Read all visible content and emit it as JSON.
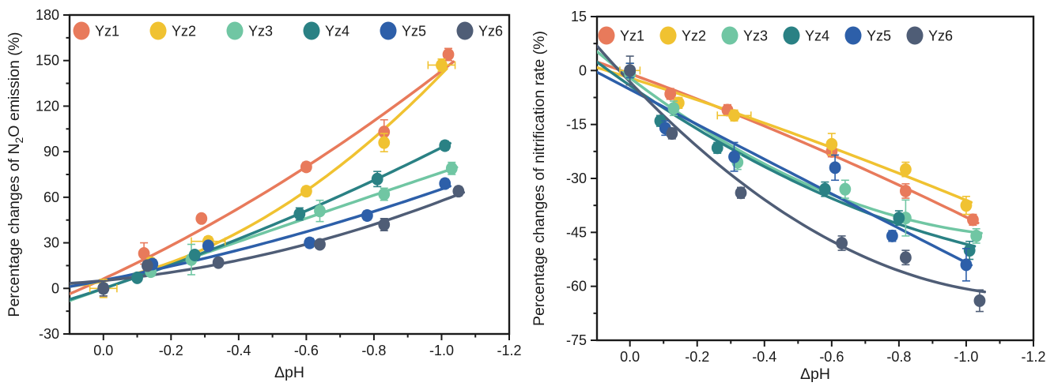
{
  "figure": {
    "background": "#ffffff",
    "frame_color": "#1a1a1a",
    "text_color": "#1a1a1a"
  },
  "chart_data": [
    {
      "type": "scatter",
      "title": "",
      "xlabel": "ΔpH",
      "ylabel_parts": [
        {
          "t": "Percentage changes of N"
        },
        {
          "t": "2",
          "sub": true
        },
        {
          "t": "O emission (%)"
        }
      ],
      "xlim": [
        0.1,
        -1.2
      ],
      "ylim": [
        -30,
        180
      ],
      "xtick_vals": [
        0.0,
        -0.2,
        -0.4,
        -0.6,
        -0.8,
        -1.0,
        -1.2
      ],
      "xtick_labels": [
        "0.0",
        "-0.2",
        "-0.4",
        "-0.6",
        "-0.8",
        "-1.0",
        "-1.2"
      ],
      "ytick_vals": [
        -30,
        0,
        30,
        60,
        90,
        120,
        150,
        180
      ],
      "ytick_labels": [
        "-30",
        "0",
        "30",
        "60",
        "90",
        "120",
        "150",
        "180"
      ],
      "x_minor_vals": [
        -0.1,
        -0.3,
        -0.5,
        -0.7,
        -0.9,
        -1.1
      ],
      "y_minor_vals": [
        -15,
        15,
        45,
        75,
        105,
        135,
        165
      ],
      "grid": "off",
      "legend_position": "top-inside",
      "fit": "quadratic",
      "series": [
        {
          "name": "Yz1",
          "color": "#E87A5B",
          "points": [
            [
              0,
              0,
              5
            ],
            [
              -0.12,
              23,
              7
            ],
            [
              -0.29,
              46,
              2
            ],
            [
              -0.6,
              80,
              3
            ],
            [
              -0.83,
              103,
              8
            ],
            [
              -1.02,
              154,
              4
            ]
          ]
        },
        {
          "name": "Yz2",
          "color": "#F0C231",
          "points": [
            [
              0,
              0,
              6,
              0.04
            ],
            [
              -0.14,
              17,
              3
            ],
            [
              -0.31,
              31,
              3,
              0.05
            ],
            [
              -0.6,
              64,
              3
            ],
            [
              -0.83,
              96,
              6
            ],
            [
              -1.0,
              147,
              4,
              0.04
            ]
          ]
        },
        {
          "name": "Yz3",
          "color": "#70C6A3",
          "points": [
            [
              0,
              0,
              3
            ],
            [
              -0.14,
              11,
              3
            ],
            [
              -0.26,
              19,
              10
            ],
            [
              -0.64,
              51,
              7
            ],
            [
              -0.83,
              62,
              4
            ],
            [
              -1.03,
              79,
              4
            ]
          ]
        },
        {
          "name": "Yz4",
          "color": "#2A8184",
          "points": [
            [
              0,
              0,
              3
            ],
            [
              -0.1,
              7,
              2
            ],
            [
              -0.27,
              22,
              2
            ],
            [
              -0.58,
              49,
              4
            ],
            [
              -0.81,
              72,
              5
            ],
            [
              -1.01,
              94,
              3
            ]
          ]
        },
        {
          "name": "Yz5",
          "color": "#2D5FA9",
          "points": [
            [
              0,
              0,
              3
            ],
            [
              -0.145,
              16,
              3
            ],
            [
              -0.31,
              28,
              2
            ],
            [
              -0.61,
              30,
              3
            ],
            [
              -0.78,
              48,
              3
            ],
            [
              -1.01,
              69,
              3
            ]
          ]
        },
        {
          "name": "Yz6",
          "color": "#4F5D76",
          "points": [
            [
              0,
              0,
              5
            ],
            [
              -0.13,
              15,
              3
            ],
            [
              -0.34,
              17,
              2
            ],
            [
              -0.64,
              29,
              2
            ],
            [
              -0.83,
              42,
              4
            ],
            [
              -1.05,
              64,
              3
            ]
          ]
        }
      ]
    },
    {
      "type": "scatter",
      "title": "",
      "xlabel": "ΔpH",
      "ylabel_parts": [
        {
          "t": "Percentage changes of nitrification rate (%)"
        }
      ],
      "xlim": [
        0.098,
        -1.2
      ],
      "ylim": [
        -75,
        15
      ],
      "xtick_vals": [
        0.0,
        -0.2,
        -0.4,
        -0.6,
        -0.8,
        -1.0,
        -1.2
      ],
      "xtick_labels": [
        "0.0",
        "-0.2",
        "-0.4",
        "-0.6",
        "-0.8",
        "-1.0",
        "-1.2"
      ],
      "ytick_vals": [
        -75,
        -60,
        -45,
        -30,
        -15,
        0,
        15
      ],
      "ytick_labels": [
        "-75",
        "-60",
        "-45",
        "-30",
        "-15",
        "0",
        "15"
      ],
      "x_minor_vals": [
        -0.1,
        -0.3,
        -0.5,
        -0.7,
        -0.9,
        -1.1
      ],
      "y_minor_vals": [
        -67.5,
        -52.5,
        -37.5,
        -22.5,
        -7.5,
        7.5
      ],
      "grid": "off",
      "legend_position": "top-inside",
      "fit": "quadratic",
      "series": [
        {
          "name": "Yz1",
          "color": "#E87A5B",
          "points": [
            [
              0,
              0,
              2
            ],
            [
              -0.12,
              -6.5,
              1.5
            ],
            [
              -0.29,
              -11,
              1.5
            ],
            [
              -0.6,
              -22.5,
              1.5
            ],
            [
              -0.82,
              -33.5,
              2
            ],
            [
              -1.02,
              -41.5,
              1.5
            ]
          ]
        },
        {
          "name": "Yz2",
          "color": "#F0C231",
          "points": [
            [
              0,
              0,
              2,
              0.03
            ],
            [
              -0.145,
              -9,
              1.5
            ],
            [
              -0.31,
              -12.5,
              1.5,
              0.05
            ],
            [
              -0.6,
              -20.5,
              3
            ],
            [
              -0.82,
              -27.5,
              2
            ],
            [
              -1.0,
              -37.5,
              2.5
            ]
          ]
        },
        {
          "name": "Yz3",
          "color": "#70C6A3",
          "points": [
            [
              0,
              -1,
              3
            ],
            [
              -0.13,
              -10.5,
              2
            ],
            [
              -0.32,
              -25.5,
              2
            ],
            [
              -0.64,
              -33,
              2.5
            ],
            [
              -0.82,
              -41,
              5
            ],
            [
              -1.03,
              -46,
              2
            ]
          ]
        },
        {
          "name": "Yz4",
          "color": "#2A8184",
          "points": [
            [
              0,
              0,
              2
            ],
            [
              -0.09,
              -14,
              1.5
            ],
            [
              -0.26,
              -21.5,
              1.5
            ],
            [
              -0.58,
              -33,
              2
            ],
            [
              -0.8,
              -41,
              2
            ],
            [
              -1.01,
              -50,
              2.5
            ]
          ]
        },
        {
          "name": "Yz5",
          "color": "#2D5FA9",
          "points": [
            [
              0,
              0,
              2
            ],
            [
              -0.105,
              -16,
              2
            ],
            [
              -0.31,
              -24,
              4
            ],
            [
              -0.61,
              -27,
              3.5
            ],
            [
              -0.78,
              -46,
              1.5
            ],
            [
              -1.0,
              -54,
              4.5
            ]
          ]
        },
        {
          "name": "Yz6",
          "color": "#4F5D76",
          "points": [
            [
              0,
              0,
              4
            ],
            [
              -0.125,
              -17.5,
              1.5
            ],
            [
              -0.33,
              -34,
              1.5
            ],
            [
              -0.63,
              -48,
              2
            ],
            [
              -0.82,
              -52,
              2
            ],
            [
              -1.04,
              -64,
              3
            ]
          ]
        }
      ]
    }
  ]
}
